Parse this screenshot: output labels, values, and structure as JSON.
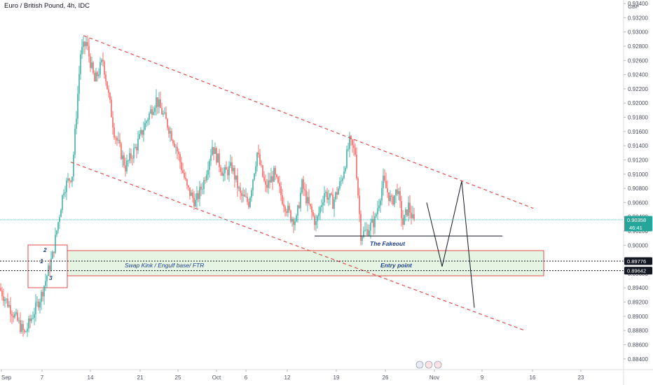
{
  "header": {
    "title": "Euro / British Pound, 4h, IDC"
  },
  "currency_label": "GBP",
  "colors": {
    "up": "#26a69a",
    "down": "#ef5350",
    "channel": "#e04e4e",
    "zone_fill": "#e6f4e3",
    "zone_border": "#e04e4e",
    "price_tag": "#26a69a",
    "annotation_text": "#1b3f8a"
  },
  "chart_data": {
    "type": "candlestick",
    "title": "Euro / British Pound, 4h, IDC",
    "ylim": [
      0.8825,
      0.9345
    ],
    "ytick_labels": [
      "0.88400",
      "0.88600",
      "0.88800",
      "0.89000",
      "0.89200",
      "0.89400",
      "0.89600",
      "0.89800",
      "0.90000",
      "0.90200",
      "0.90400",
      "0.90600",
      "0.90800",
      "0.91000",
      "0.91200",
      "0.91400",
      "0.91600",
      "0.91800",
      "0.92000",
      "0.92200",
      "0.92400",
      "0.92600",
      "0.92800",
      "0.93000",
      "0.93200",
      "0.93400"
    ],
    "xtick_labels": [
      "Sep",
      "7",
      "14",
      "21",
      "25",
      "Oct",
      "6",
      "12",
      "19",
      "26",
      "Nov",
      "9",
      "16",
      "23"
    ],
    "price_tags": [
      {
        "value": 0.90358,
        "label": "0.90358",
        "sublabel": "46:41"
      },
      {
        "value": 0.89776,
        "label": "0.89776"
      },
      {
        "value": 0.89642,
        "label": "0.89642"
      }
    ],
    "anchors": [
      {
        "bar": 0,
        "price": 0.894
      },
      {
        "bar": 18,
        "price": 0.8875
      },
      {
        "bar": 30,
        "price": 0.893
      },
      {
        "bar": 38,
        "price": 0.8985
      },
      {
        "bar": 46,
        "price": 0.908
      },
      {
        "bar": 52,
        "price": 0.91
      },
      {
        "bar": 58,
        "price": 0.927
      },
      {
        "bar": 62,
        "price": 0.9285
      },
      {
        "bar": 68,
        "price": 0.923
      },
      {
        "bar": 74,
        "price": 0.926
      },
      {
        "bar": 82,
        "price": 0.916
      },
      {
        "bar": 90,
        "price": 0.911
      },
      {
        "bar": 98,
        "price": 0.914
      },
      {
        "bar": 106,
        "price": 0.918
      },
      {
        "bar": 112,
        "price": 0.9205
      },
      {
        "bar": 120,
        "price": 0.917
      },
      {
        "bar": 126,
        "price": 0.914
      },
      {
        "bar": 134,
        "price": 0.908
      },
      {
        "bar": 140,
        "price": 0.906
      },
      {
        "bar": 146,
        "price": 0.909
      },
      {
        "bar": 152,
        "price": 0.914
      },
      {
        "bar": 160,
        "price": 0.91
      },
      {
        "bar": 166,
        "price": 0.911
      },
      {
        "bar": 172,
        "price": 0.907
      },
      {
        "bar": 178,
        "price": 0.906
      },
      {
        "bar": 184,
        "price": 0.913
      },
      {
        "bar": 190,
        "price": 0.908
      },
      {
        "bar": 196,
        "price": 0.91
      },
      {
        "bar": 202,
        "price": 0.9065
      },
      {
        "bar": 208,
        "price": 0.904
      },
      {
        "bar": 212,
        "price": 0.9035
      },
      {
        "bar": 216,
        "price": 0.9085
      },
      {
        "bar": 220,
        "price": 0.906
      },
      {
        "bar": 226,
        "price": 0.903
      },
      {
        "bar": 232,
        "price": 0.9075
      },
      {
        "bar": 238,
        "price": 0.906
      },
      {
        "bar": 244,
        "price": 0.909
      },
      {
        "bar": 250,
        "price": 0.9145
      },
      {
        "bar": 254,
        "price": 0.913
      },
      {
        "bar": 258,
        "price": 0.9015
      },
      {
        "bar": 262,
        "price": 0.902
      },
      {
        "bar": 268,
        "price": 0.9035
      },
      {
        "bar": 274,
        "price": 0.909
      },
      {
        "bar": 280,
        "price": 0.906
      },
      {
        "bar": 284,
        "price": 0.908
      },
      {
        "bar": 288,
        "price": 0.903
      },
      {
        "bar": 292,
        "price": 0.9055
      },
      {
        "bar": 295,
        "price": 0.9036
      }
    ],
    "projection": [
      {
        "bar": 304,
        "price": 0.906
      },
      {
        "bar": 315,
        "price": 0.897
      },
      {
        "bar": 329,
        "price": 0.909
      },
      {
        "bar": 338,
        "price": 0.8912
      }
    ],
    "channel_upper": [
      {
        "bar": 59,
        "price": 0.9295
      },
      {
        "bar": 380,
        "price": 0.9052
      }
    ],
    "channel_lower": [
      {
        "bar": 50,
        "price": 0.9117
      },
      {
        "bar": 374,
        "price": 0.888
      }
    ],
    "fakeout_line": {
      "bar_start": 224,
      "bar_end": 358,
      "price": 0.9013
    }
  },
  "annotations": {
    "zone_label": "Swap Kink / Engulf base/ FTR",
    "entry_label": "Entry point",
    "fakeout_label": "The Fakeout",
    "point_2": "2",
    "point_1": "1",
    "point_3": "3"
  }
}
